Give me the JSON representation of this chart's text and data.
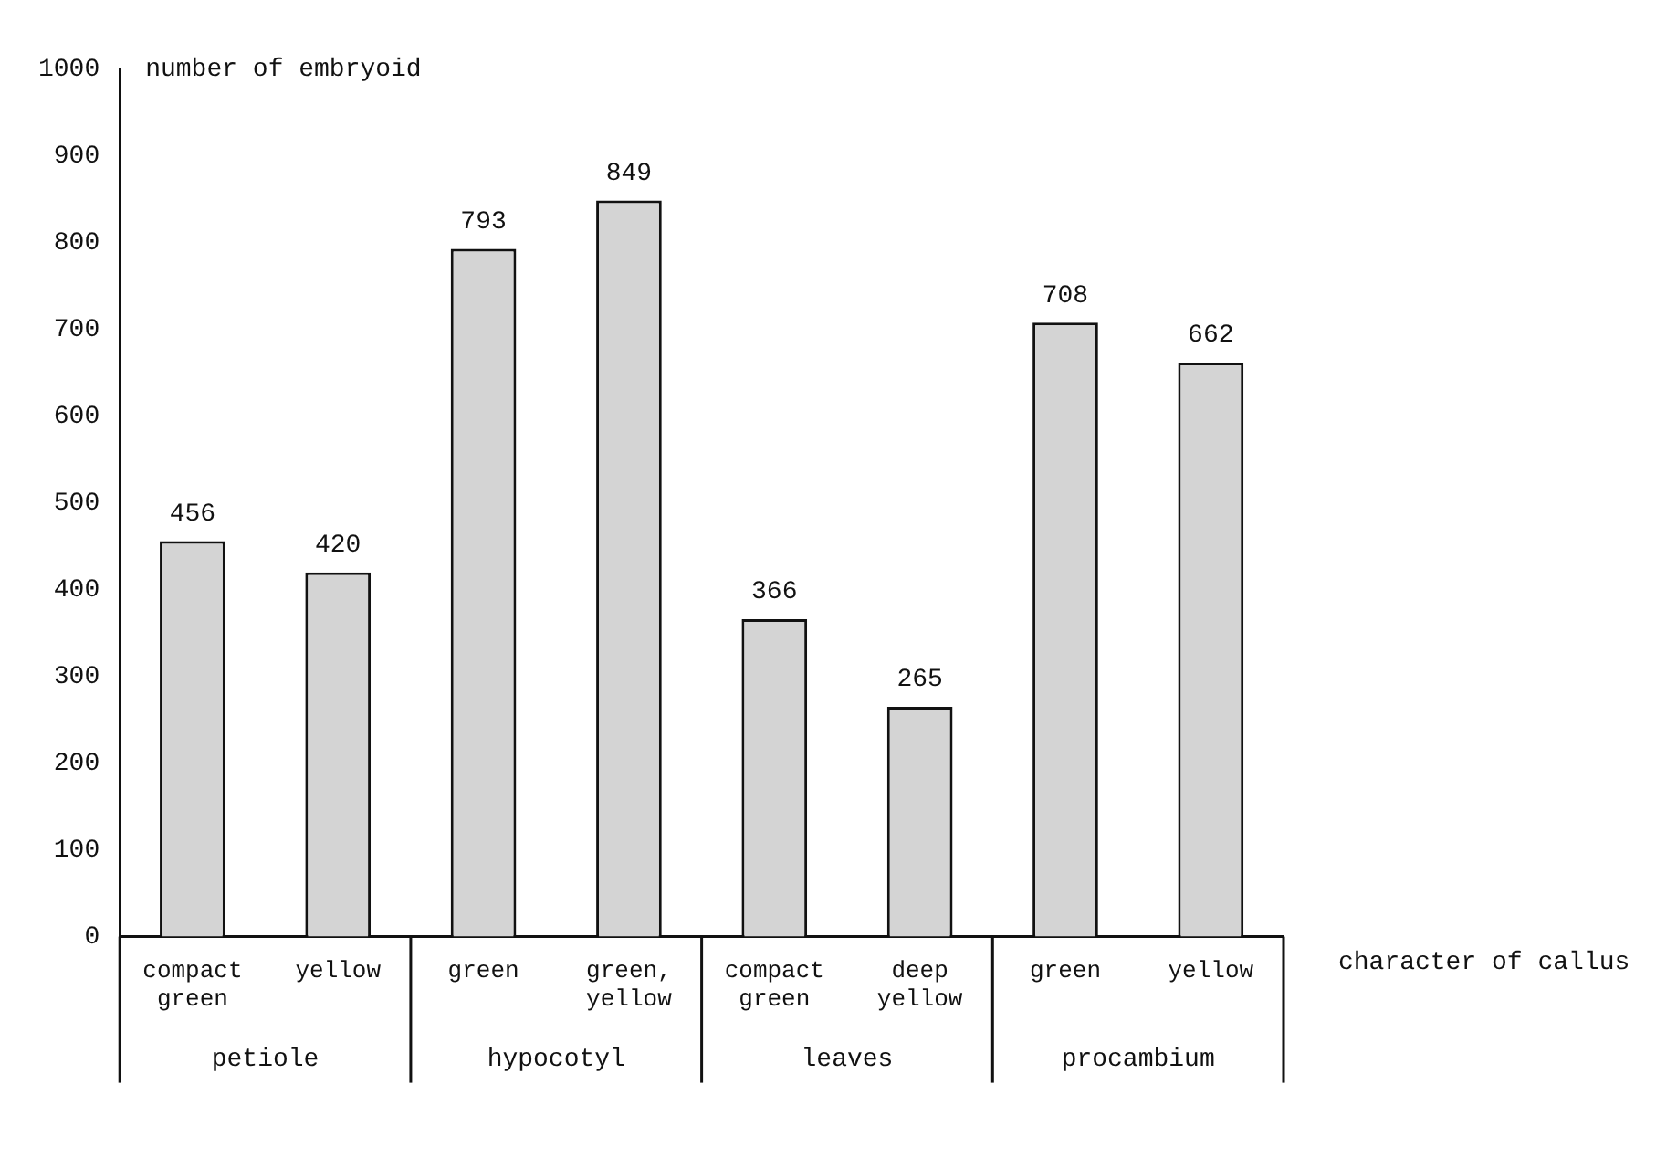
{
  "chart_data": {
    "type": "bar",
    "ylabel": "number of embryoid",
    "xlabel": "character of callus",
    "categories": [
      "compact green",
      "yellow",
      "green",
      "green, yellow",
      "compact green",
      "deep yellow",
      "green",
      "yellow"
    ],
    "values": [
      456,
      420,
      793,
      849,
      366,
      265,
      708,
      662
    ],
    "color": "#d4d4d4",
    "data_labels": true,
    "ylim": [
      0,
      1000
    ],
    "yticks": [
      0,
      100,
      200,
      300,
      400,
      500,
      600,
      700,
      800,
      900,
      1000
    ],
    "grid": false,
    "legend": false,
    "annotations": [
      "petiole",
      "hypocotyl",
      "leaves",
      "procambium"
    ]
  }
}
